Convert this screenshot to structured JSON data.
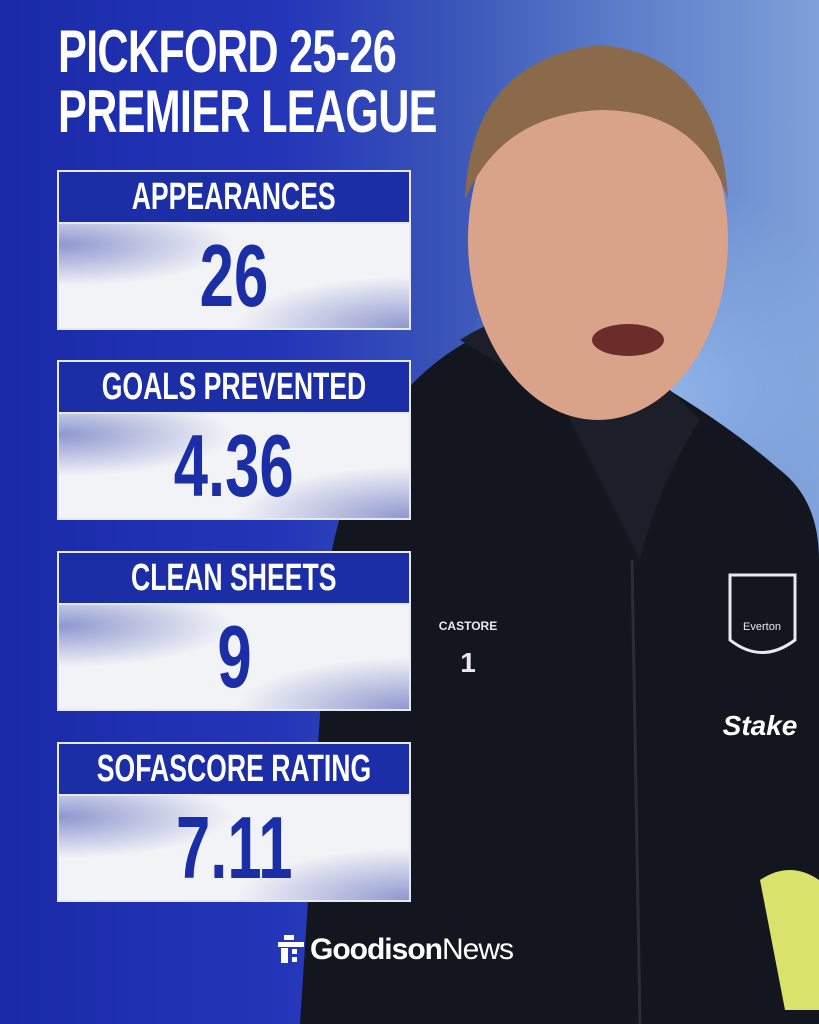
{
  "title": {
    "line1": "PICKFORD 25-26",
    "line2": "PREMIER LEAGUE"
  },
  "stats": [
    {
      "label": "APPEARANCES",
      "value": "26"
    },
    {
      "label": "GOALS PREVENTED",
      "value": "4.36"
    },
    {
      "label": "CLEAN SHEETS",
      "value": "9"
    },
    {
      "label": "SOFASCORE RATING",
      "value": "7.11"
    }
  ],
  "photo": {
    "kit_brand": "CASTORE",
    "shirt_number": "1",
    "club_crest": "Everton",
    "sponsor": "Stake"
  },
  "brand": {
    "bold": "Goodison",
    "light": "News"
  },
  "colors": {
    "primary": "#1b2ea6",
    "box_bg": "#f2f3f7",
    "text_light": "#ffffff"
  }
}
